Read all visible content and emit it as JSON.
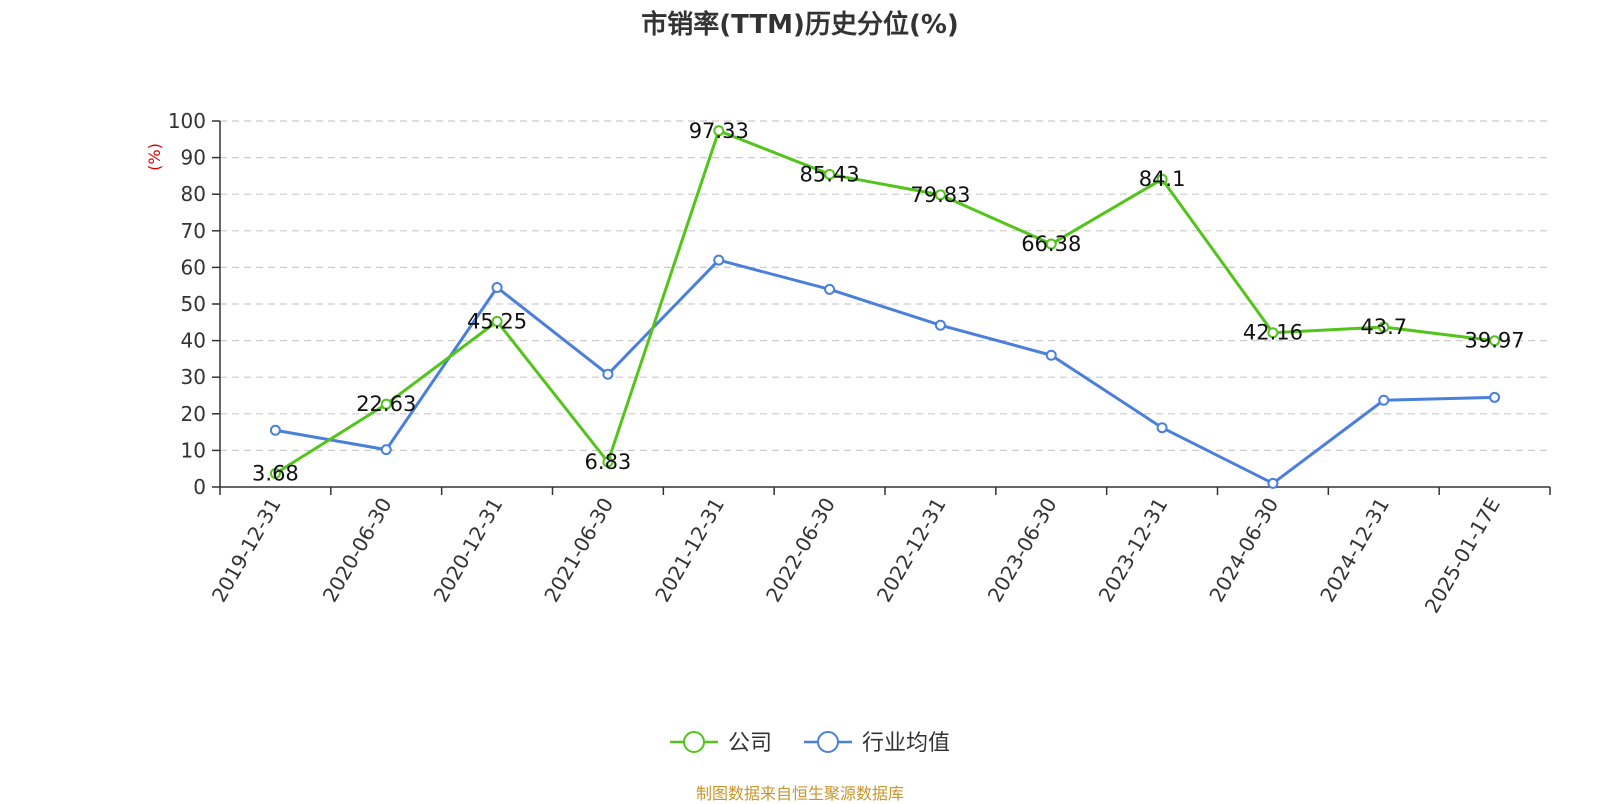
{
  "chart_data": {
    "type": "line",
    "title": "市销率(TTM)历史分位(%)",
    "ylabel": "(%)",
    "xlabel": "",
    "ylim": [
      0,
      100
    ],
    "yticks": [
      0,
      10,
      20,
      30,
      40,
      50,
      60,
      70,
      80,
      90,
      100
    ],
    "grid": true,
    "legend_position": "bottom",
    "categories": [
      "2019-12-31",
      "2020-06-30",
      "2020-12-31",
      "2021-06-30",
      "2021-12-31",
      "2022-06-30",
      "2022-12-31",
      "2023-06-30",
      "2023-12-31",
      "2024-06-30",
      "2024-12-31",
      "2025-01-17E"
    ],
    "series": [
      {
        "name": "公司",
        "color": "#52c41a",
        "values": [
          3.68,
          22.63,
          45.25,
          6.83,
          97.33,
          85.43,
          79.83,
          66.38,
          84.1,
          42.16,
          43.7,
          39.97
        ],
        "labels": [
          "3.68",
          "22.63",
          "45.25",
          "6.83",
          "97.33",
          "85.43",
          "79.83",
          "66.38",
          "84.1",
          "42.16",
          "43.7",
          "39.97"
        ],
        "show_labels": true
      },
      {
        "name": "行业均值",
        "color": "#4a7fdc",
        "values": [
          15.5,
          10.2,
          54.5,
          30.8,
          62.0,
          54.0,
          44.2,
          36.0,
          16.2,
          1.0,
          23.7,
          24.5
        ],
        "show_labels": false
      }
    ]
  },
  "footer": {
    "source": "制图数据来自恒生聚源数据库"
  },
  "colors": {
    "axis": "#333333",
    "grid": "#cccccc",
    "ylabel": "#e00000",
    "source": "#c8962c"
  }
}
